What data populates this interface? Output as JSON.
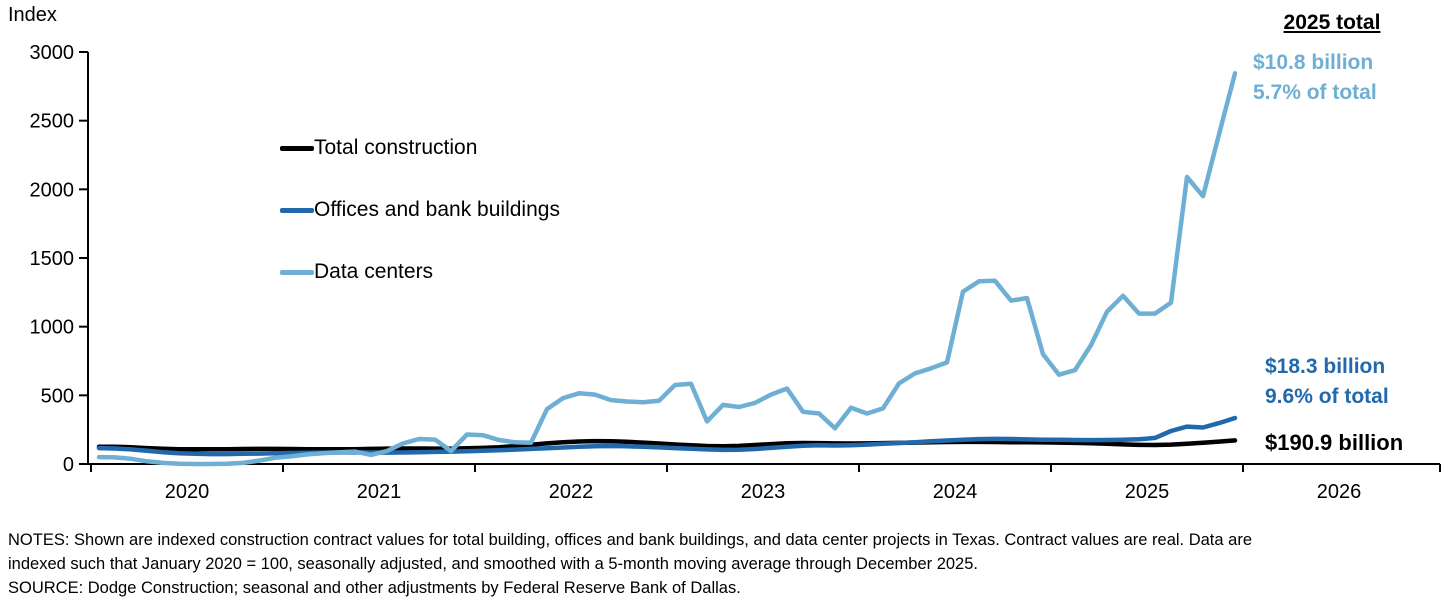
{
  "header": {
    "index_label": "Index"
  },
  "annotations": {
    "header": "2025 total",
    "data_centers_value": "$10.8 billion",
    "data_centers_share": "5.7% of total",
    "offices_value": "$18.3 billion",
    "offices_share": "9.6% of total",
    "total_value": "$190.9 billion"
  },
  "notes": [
    "NOTES: Shown are indexed construction contract values for total building, offices and bank buildings, and data center projects in Texas. Contract values are real. Data are",
    "indexed such that January 2020 = 100, seasonally adjusted, and smoothed with a 5-month moving average through December 2025.",
    "SOURCE: Dodge Construction; seasonal and other adjustments by Federal Reserve Bank of Dallas."
  ],
  "chart_data": {
    "type": "line",
    "title": "",
    "xlabel": "",
    "ylabel": "Index",
    "ylim": [
      0,
      3000
    ],
    "yticks": [
      0,
      500,
      1000,
      1500,
      2000,
      2500,
      3000
    ],
    "xticks_years": [
      2020,
      2021,
      2022,
      2023,
      2024,
      2025,
      2026
    ],
    "x_start": "2020-01",
    "x_end": "2025-12",
    "x_frequency": "monthly",
    "grid": false,
    "legend_position": "upper-left-inside",
    "series": [
      {
        "id": "total-construction",
        "name": "Total construction",
        "color": "#000000",
        "values": [
          126,
          125,
          122,
          116,
          111,
          108,
          107,
          107,
          108,
          109,
          110,
          110,
          109,
          108,
          107,
          107,
          108,
          110,
          112,
          113,
          113,
          112,
          112,
          114,
          117,
          122,
          130,
          140,
          150,
          158,
          164,
          167,
          166,
          162,
          156,
          149,
          142,
          136,
          131,
          129,
          132,
          138,
          145,
          151,
          153,
          152,
          150,
          149,
          150,
          152,
          154,
          156,
          158,
          160,
          161,
          161,
          160,
          159,
          158,
          157,
          156,
          154,
          151,
          147,
          143,
          139,
          138,
          141,
          147,
          155,
          163,
          172
        ]
      },
      {
        "id": "offices-and-bank-buildings",
        "name": "Offices and bank buildings",
        "color": "#2268ac",
        "values": [
          116,
          113,
          106,
          96,
          86,
          79,
          74,
          72,
          72,
          74,
          76,
          78,
          80,
          82,
          83,
          84,
          85,
          84,
          83,
          84,
          86,
          88,
          90,
          93,
          96,
          100,
          105,
          110,
          115,
          120,
          125,
          129,
          131,
          129,
          125,
          121,
          116,
          111,
          106,
          103,
          104,
          109,
          117,
          126,
          133,
          136,
          135,
          137,
          141,
          147,
          153,
          159,
          165,
          171,
          177,
          181,
          183,
          182,
          179,
          177,
          176,
          175,
          174,
          175,
          177,
          180,
          190,
          240,
          272,
          266,
          298,
          335
        ]
      },
      {
        "id": "data-centers",
        "name": "Data centers",
        "color": "#6fafd4",
        "values": [
          50,
          48,
          38,
          20,
          8,
          2,
          0,
          0,
          2,
          8,
          25,
          45,
          55,
          70,
          78,
          85,
          90,
          66,
          95,
          150,
          182,
          178,
          95,
          215,
          210,
          175,
          158,
          155,
          400,
          480,
          515,
          505,
          465,
          455,
          450,
          460,
          575,
          585,
          310,
          430,
          415,
          445,
          505,
          550,
          380,
          368,
          260,
          410,
          368,
          405,
          587,
          660,
          697,
          740,
          1255,
          1330,
          1334,
          1190,
          1208,
          800,
          650,
          684,
          866,
          1109,
          1225,
          1095,
          1095,
          1175,
          2090,
          1950,
          2400,
          2845
        ]
      }
    ]
  }
}
